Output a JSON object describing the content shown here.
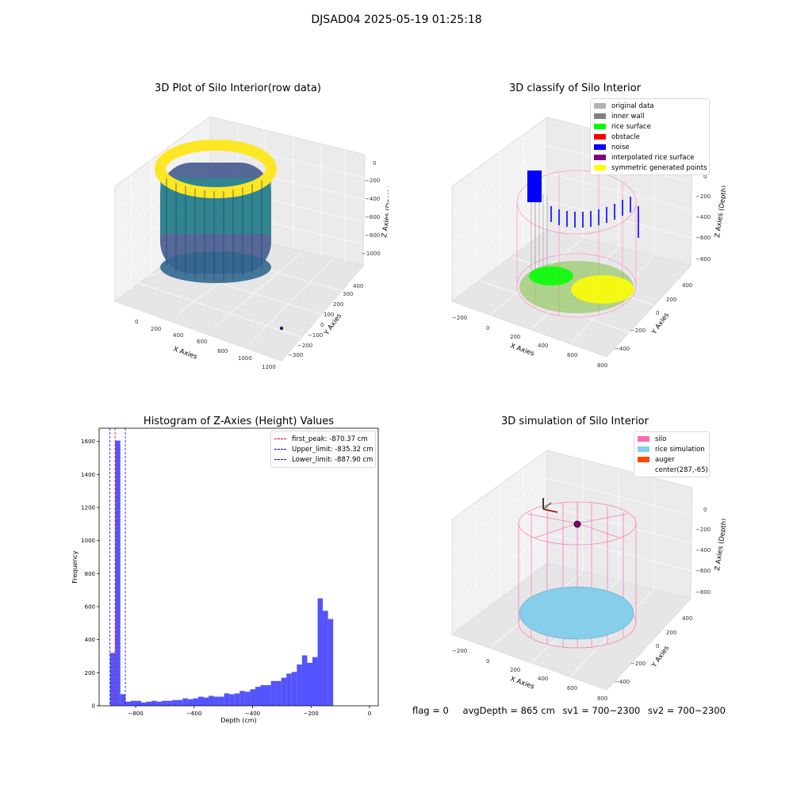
{
  "suptitle": "DJSAD04 2025-05-19 01:25:18",
  "panels": {
    "raw": {
      "title": "3D Plot of Silo Interior(row data)",
      "x_label": "X Axies",
      "y_label": "Y Axies",
      "z_label": "Z Axies (Depth)",
      "x_ticks": [
        "0",
        "200",
        "400",
        "600",
        "800",
        "1000",
        "1200"
      ],
      "y_ticks": [
        "−300",
        "−200",
        "−100",
        "0",
        "100",
        "200",
        "300",
        "400"
      ],
      "z_ticks": [
        "0",
        "−200",
        "−400",
        "−600",
        "−800",
        "−1000"
      ]
    },
    "classify": {
      "title": "3D classify of Silo Interior",
      "x_label": "X Axies",
      "y_label": "Y Axies",
      "z_label": "Z Axies (Depth)",
      "x_ticks": [
        "−200",
        "0",
        "200",
        "400",
        "600",
        "800"
      ],
      "y_ticks": [
        "−400",
        "−200",
        "0",
        "200",
        "400"
      ],
      "z_ticks": [
        "0",
        "−200",
        "−400",
        "−600",
        "−800"
      ],
      "legend": [
        {
          "label": "original data",
          "color": "#b3b3b3"
        },
        {
          "label": "inner wall",
          "color": "#808080"
        },
        {
          "label": "rice surface",
          "color": "#00ff00"
        },
        {
          "label": "obstacle",
          "color": "#ff0000"
        },
        {
          "label": "noise",
          "color": "#0000ff"
        },
        {
          "label": "interpolated rice surface",
          "color": "#800080"
        },
        {
          "label": "symmetric generated points",
          "color": "#ffff00"
        }
      ]
    },
    "simulation": {
      "title": "3D simulation of Silo Interior",
      "x_label": "X Axies",
      "y_label": "Y Axies",
      "z_label": "Z Axies (Depth)",
      "x_ticks": [
        "−200",
        "0",
        "200",
        "400",
        "600",
        "800"
      ],
      "y_ticks": [
        "−400",
        "−200",
        "0",
        "200",
        "400"
      ],
      "z_ticks": [
        "0",
        "−200",
        "−400",
        "−600",
        "−800"
      ],
      "legend": [
        {
          "label": "silo",
          "color": "#ff69b4"
        },
        {
          "label": "rice simulation",
          "color": "#87ceeb"
        },
        {
          "label": "auger",
          "color": "#ff4500"
        },
        {
          "label": "center(287,-65)",
          "color": ""
        }
      ]
    }
  },
  "chart_data": [
    {
      "type": "bar",
      "title": "Histogram of Z-Axies (Height) Values",
      "xlabel": "Depth (cm)",
      "ylabel": "Frequency",
      "xlim": [
        -925,
        30
      ],
      "ylim": [
        0,
        1680
      ],
      "x_ticks": [
        -800,
        -600,
        -400,
        -200,
        0
      ],
      "x_tick_labels": [
        "−800",
        "−600",
        "−400",
        "−200",
        "0"
      ],
      "y_ticks": [
        0,
        200,
        400,
        600,
        800,
        1000,
        1200,
        1400,
        1600
      ],
      "bar_color": "#4b4bff",
      "bin_start": -887.9,
      "bin_width": 17.76,
      "values": [
        320,
        1605,
        70,
        25,
        30,
        30,
        20,
        25,
        30,
        25,
        30,
        30,
        35,
        35,
        45,
        40,
        45,
        55,
        50,
        60,
        55,
        55,
        75,
        70,
        75,
        90,
        85,
        100,
        115,
        125,
        125,
        150,
        150,
        170,
        195,
        205,
        250,
        305,
        260,
        295,
        650,
        575,
        525
      ],
      "vlines": [
        {
          "label": "first_peak: -870.37 cm",
          "x": -870.37,
          "color": "#ff0000"
        },
        {
          "label": "Upper_limit: -835.32 cm",
          "x": -835.32,
          "color": "#0000ff"
        },
        {
          "label": "Lower_limit: -887.90 cm",
          "x": -887.9,
          "color": "#0000ff"
        }
      ],
      "legend_position": "upper-right"
    }
  ],
  "footer": {
    "flag": "flag = 0",
    "avg_depth": "avgDepth = 865 cm",
    "sv1": "sv1 = 700~2300",
    "sv2": "sv2 = 700~2300"
  }
}
